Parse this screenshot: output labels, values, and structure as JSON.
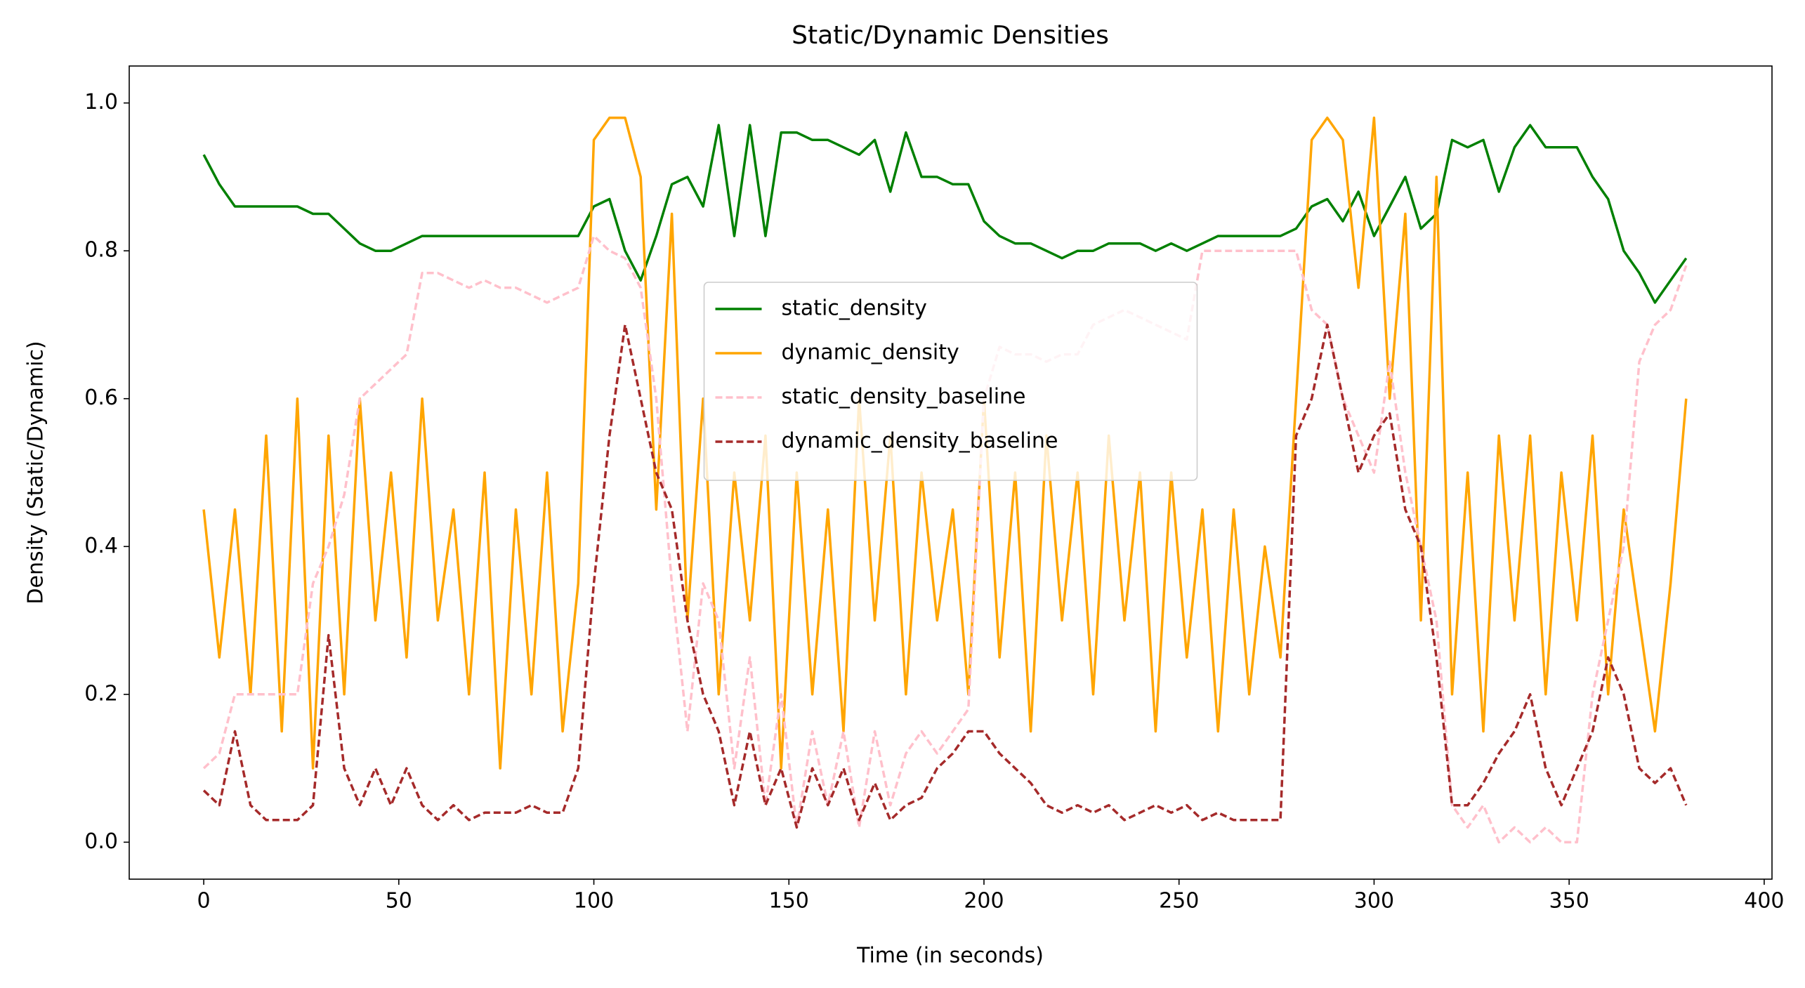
{
  "chart_data": {
    "type": "line",
    "title": "Static/Dynamic Densities",
    "xlabel": "Time (in seconds)",
    "ylabel": "Density (Static/Dynamic)",
    "x": [
      0,
      4,
      8,
      12,
      16,
      20,
      24,
      28,
      32,
      36,
      40,
      44,
      48,
      52,
      56,
      60,
      64,
      68,
      72,
      76,
      80,
      84,
      88,
      92,
      96,
      100,
      104,
      108,
      112,
      116,
      120,
      124,
      128,
      132,
      136,
      140,
      144,
      148,
      152,
      156,
      160,
      164,
      168,
      172,
      176,
      180,
      184,
      188,
      192,
      196,
      200,
      204,
      208,
      212,
      216,
      220,
      224,
      228,
      232,
      236,
      240,
      244,
      248,
      252,
      256,
      260,
      264,
      268,
      272,
      276,
      280,
      284,
      288,
      292,
      296,
      300,
      304,
      308,
      312,
      316,
      320,
      324,
      328,
      332,
      336,
      340,
      344,
      348,
      352,
      356,
      360,
      364,
      368,
      372,
      376,
      380
    ],
    "series": [
      {
        "name": "static_density",
        "color": "#008000",
        "linestyle": "solid",
        "values": [
          0.93,
          0.89,
          0.86,
          0.86,
          0.86,
          0.86,
          0.86,
          0.85,
          0.85,
          0.83,
          0.81,
          0.8,
          0.8,
          0.81,
          0.82,
          0.82,
          0.82,
          0.82,
          0.82,
          0.82,
          0.82,
          0.82,
          0.82,
          0.82,
          0.82,
          0.86,
          0.87,
          0.8,
          0.76,
          0.82,
          0.89,
          0.9,
          0.86,
          0.97,
          0.82,
          0.97,
          0.82,
          0.96,
          0.96,
          0.95,
          0.95,
          0.94,
          0.93,
          0.95,
          0.88,
          0.96,
          0.9,
          0.9,
          0.89,
          0.89,
          0.84,
          0.82,
          0.81,
          0.81,
          0.8,
          0.79,
          0.8,
          0.8,
          0.81,
          0.81,
          0.81,
          0.8,
          0.81,
          0.8,
          0.81,
          0.82,
          0.82,
          0.82,
          0.82,
          0.82,
          0.83,
          0.86,
          0.87,
          0.84,
          0.88,
          0.82,
          0.86,
          0.9,
          0.83,
          0.85,
          0.95,
          0.94,
          0.95,
          0.88,
          0.94,
          0.97,
          0.94,
          0.94,
          0.94,
          0.9,
          0.87,
          0.8,
          0.77,
          0.73,
          0.76,
          0.79
        ]
      },
      {
        "name": "dynamic_density",
        "color": "#ffa500",
        "linestyle": "solid",
        "values": [
          0.45,
          0.25,
          0.45,
          0.2,
          0.55,
          0.15,
          0.6,
          0.1,
          0.55,
          0.2,
          0.6,
          0.3,
          0.5,
          0.25,
          0.6,
          0.3,
          0.45,
          0.2,
          0.5,
          0.1,
          0.45,
          0.2,
          0.5,
          0.15,
          0.35,
          0.95,
          0.98,
          0.98,
          0.9,
          0.45,
          0.85,
          0.3,
          0.6,
          0.2,
          0.5,
          0.3,
          0.55,
          0.1,
          0.5,
          0.2,
          0.45,
          0.15,
          0.6,
          0.3,
          0.55,
          0.2,
          0.5,
          0.3,
          0.45,
          0.2,
          0.6,
          0.25,
          0.5,
          0.15,
          0.55,
          0.3,
          0.5,
          0.2,
          0.55,
          0.3,
          0.5,
          0.15,
          0.5,
          0.25,
          0.45,
          0.15,
          0.45,
          0.2,
          0.4,
          0.25,
          0.6,
          0.95,
          0.98,
          0.95,
          0.75,
          0.98,
          0.6,
          0.85,
          0.3,
          0.9,
          0.2,
          0.5,
          0.15,
          0.55,
          0.3,
          0.55,
          0.2,
          0.5,
          0.3,
          0.55,
          0.2,
          0.45,
          0.3,
          0.15,
          0.35,
          0.6
        ]
      },
      {
        "name": "static_density_baseline",
        "color": "#ffc0cb",
        "linestyle": "dashed",
        "values": [
          0.1,
          0.12,
          0.2,
          0.2,
          0.2,
          0.2,
          0.2,
          0.35,
          0.4,
          0.47,
          0.6,
          0.62,
          0.64,
          0.66,
          0.77,
          0.77,
          0.76,
          0.75,
          0.76,
          0.75,
          0.75,
          0.74,
          0.73,
          0.74,
          0.75,
          0.82,
          0.8,
          0.79,
          0.75,
          0.6,
          0.35,
          0.15,
          0.35,
          0.3,
          0.1,
          0.25,
          0.05,
          0.2,
          0.02,
          0.15,
          0.05,
          0.15,
          0.02,
          0.15,
          0.05,
          0.12,
          0.15,
          0.12,
          0.15,
          0.18,
          0.6,
          0.67,
          0.66,
          0.66,
          0.65,
          0.66,
          0.66,
          0.7,
          0.71,
          0.72,
          0.71,
          0.7,
          0.69,
          0.68,
          0.8,
          0.8,
          0.8,
          0.8,
          0.8,
          0.8,
          0.8,
          0.72,
          0.7,
          0.6,
          0.55,
          0.5,
          0.65,
          0.5,
          0.4,
          0.3,
          0.05,
          0.02,
          0.05,
          0,
          0.02,
          0,
          0.02,
          0,
          0,
          0.2,
          0.3,
          0.4,
          0.65,
          0.7,
          0.72,
          0.78
        ]
      },
      {
        "name": "dynamic_density_baseline",
        "color": "#a52a2a",
        "linestyle": "dashed",
        "values": [
          0.07,
          0.05,
          0.15,
          0.05,
          0.03,
          0.03,
          0.03,
          0.05,
          0.28,
          0.1,
          0.05,
          0.1,
          0.05,
          0.1,
          0.05,
          0.03,
          0.05,
          0.03,
          0.04,
          0.04,
          0.04,
          0.05,
          0.04,
          0.04,
          0.1,
          0.35,
          0.55,
          0.7,
          0.6,
          0.5,
          0.45,
          0.3,
          0.2,
          0.15,
          0.05,
          0.15,
          0.05,
          0.1,
          0.02,
          0.1,
          0.05,
          0.1,
          0.03,
          0.08,
          0.03,
          0.05,
          0.06,
          0.1,
          0.12,
          0.15,
          0.15,
          0.12,
          0.1,
          0.08,
          0.05,
          0.04,
          0.05,
          0.04,
          0.05,
          0.03,
          0.04,
          0.05,
          0.04,
          0.05,
          0.03,
          0.04,
          0.03,
          0.03,
          0.03,
          0.03,
          0.55,
          0.6,
          0.7,
          0.6,
          0.5,
          0.55,
          0.58,
          0.45,
          0.4,
          0.25,
          0.05,
          0.05,
          0.08,
          0.12,
          0.15,
          0.2,
          0.1,
          0.05,
          0.1,
          0.15,
          0.25,
          0.2,
          0.1,
          0.08,
          0.1,
          0.05
        ]
      }
    ],
    "xlim": [
      -19.1,
      402
    ],
    "xticks": [
      0,
      50,
      100,
      150,
      200,
      250,
      300,
      350,
      400
    ],
    "ylim": [
      -0.05,
      1.05
    ],
    "yticks": [
      {
        "value": 0,
        "label": "0.0"
      },
      0.2,
      0.4,
      0.6,
      0.8,
      {
        "value": 1,
        "label": "1.0"
      }
    ],
    "grid": false,
    "legend": "center"
  }
}
